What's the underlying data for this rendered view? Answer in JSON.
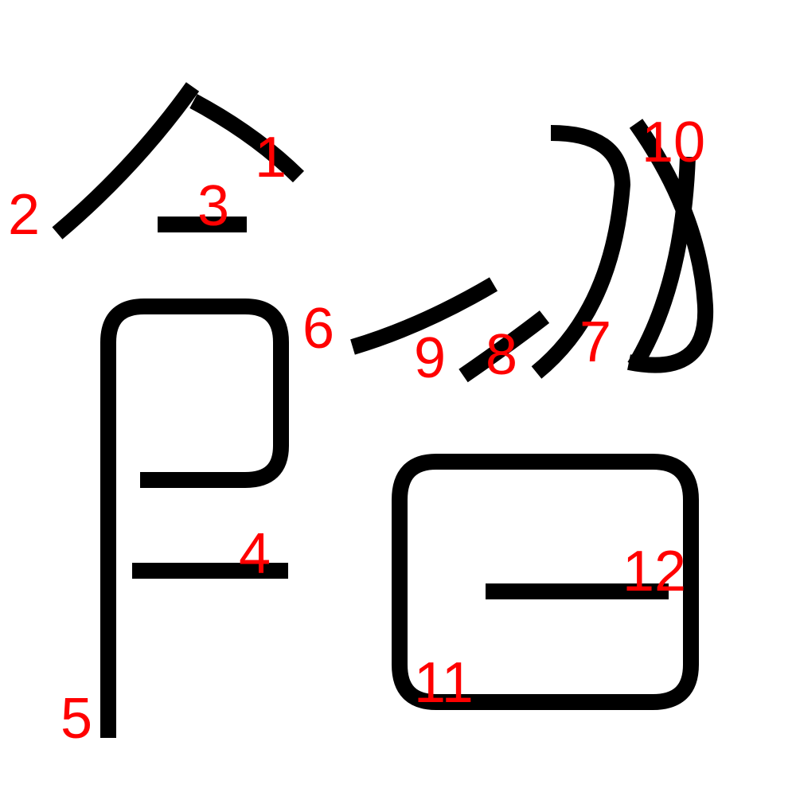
{
  "diagram": {
    "stroke_color": "#000000",
    "label_color": "#ff0000",
    "strokes": [
      {
        "order": "1"
      },
      {
        "order": "2"
      },
      {
        "order": "3"
      },
      {
        "order": "4"
      },
      {
        "order": "5"
      },
      {
        "order": "6"
      },
      {
        "order": "7"
      },
      {
        "order": "8"
      },
      {
        "order": "9"
      },
      {
        "order": "10"
      },
      {
        "order": "11"
      },
      {
        "order": "12"
      }
    ]
  }
}
